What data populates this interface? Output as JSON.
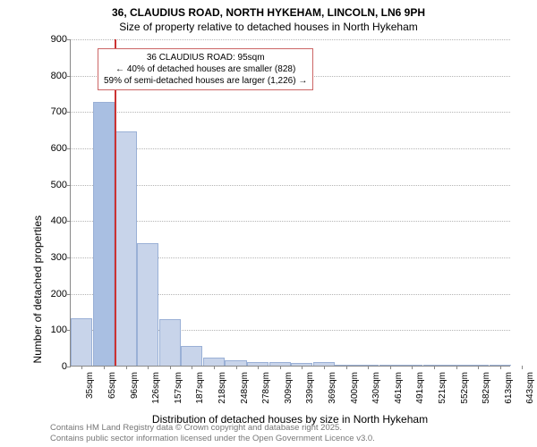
{
  "title": {
    "line1": "36, CLAUDIUS ROAD, NORTH HYKEHAM, LINCOLN, LN6 9PH",
    "line2": "Size of property relative to detached houses in North Hykeham"
  },
  "chart": {
    "type": "histogram",
    "ylabel": "Number of detached properties",
    "xlabel": "Distribution of detached houses by size in North Hykeham",
    "ylim": [
      0,
      900
    ],
    "ytick_step": 100,
    "background_color": "#ffffff",
    "grid_color": "#b5b5b5",
    "axis_color": "#888888",
    "bar_fill": "#c8d4ea",
    "bar_stroke": "#9ab0d6",
    "highlight_bar_fill": "#a9bfe2",
    "marker_color": "#cc3333",
    "callout_border": "#cc6666",
    "label_fontsize": 12,
    "tick_fontsize": 10,
    "xticks": [
      "35sqm",
      "65sqm",
      "96sqm",
      "126sqm",
      "157sqm",
      "187sqm",
      "218sqm",
      "248sqm",
      "278sqm",
      "309sqm",
      "339sqm",
      "369sqm",
      "400sqm",
      "430sqm",
      "461sqm",
      "491sqm",
      "521sqm",
      "552sqm",
      "582sqm",
      "613sqm",
      "643sqm"
    ],
    "bars": [
      {
        "value": 130,
        "highlight": false
      },
      {
        "value": 725,
        "highlight": true
      },
      {
        "value": 645,
        "highlight": false
      },
      {
        "value": 338,
        "highlight": false
      },
      {
        "value": 128,
        "highlight": false
      },
      {
        "value": 55,
        "highlight": false
      },
      {
        "value": 22,
        "highlight": false
      },
      {
        "value": 15,
        "highlight": false
      },
      {
        "value": 10,
        "highlight": false
      },
      {
        "value": 10,
        "highlight": false
      },
      {
        "value": 8,
        "highlight": false
      },
      {
        "value": 10,
        "highlight": false
      },
      {
        "value": 3,
        "highlight": false
      },
      {
        "value": 0,
        "highlight": false
      },
      {
        "value": 3,
        "highlight": false
      },
      {
        "value": 0,
        "highlight": false
      },
      {
        "value": 0,
        "highlight": false
      },
      {
        "value": 0,
        "highlight": false
      },
      {
        "value": 0,
        "highlight": false
      },
      {
        "value": 3,
        "highlight": false
      }
    ],
    "marker": {
      "position_bin": 2,
      "callout": {
        "line1": "36 CLAUDIUS ROAD: 95sqm",
        "line2": "← 40% of detached houses are smaller (828)",
        "line3": "59% of semi-detached houses are larger (1,226) →"
      }
    }
  },
  "footer": {
    "line1": "Contains HM Land Registry data © Crown copyright and database right 2025.",
    "line2": "Contains public sector information licensed under the Open Government Licence v3.0."
  }
}
